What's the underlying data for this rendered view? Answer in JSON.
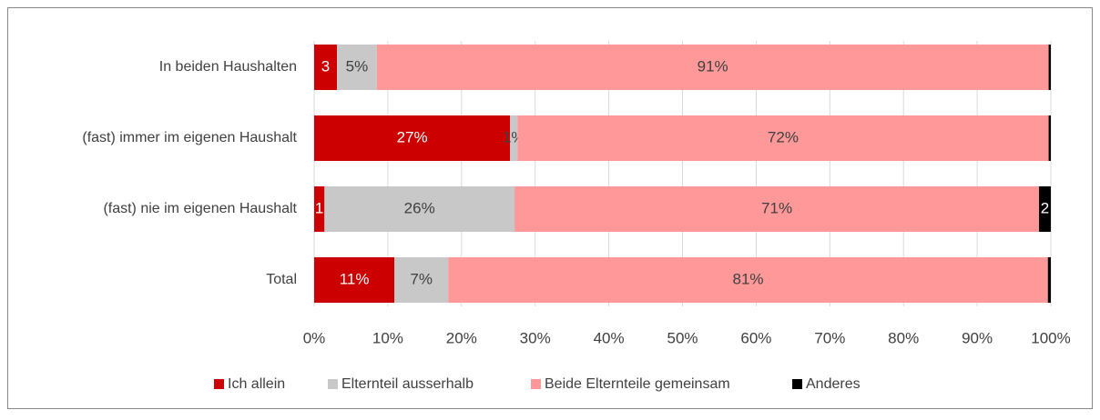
{
  "chart_data": {
    "type": "bar",
    "orientation": "horizontal",
    "stacked": true,
    "categories": [
      "In beiden Haushalten",
      "(fast) immer im eigenen Haushalt",
      "(fast) nie im eigenen Haushalt",
      "Total"
    ],
    "series": [
      {
        "name": "Ich allein",
        "color": "#cc0000",
        "values": [
          3.1,
          26.6,
          1.4,
          10.9
        ],
        "value_labels": [
          "3",
          "27%",
          "1",
          "11%"
        ]
      },
      {
        "name": "Elternteil ausserhalb",
        "color": "#c8c8c8",
        "values": [
          5.4,
          1.0,
          25.8,
          7.3
        ],
        "value_labels": [
          "5%",
          "1%",
          "26%",
          "7%"
        ]
      },
      {
        "name": "Beide Elternteile gemeinsam",
        "color": "#ff9999",
        "values": [
          91.2,
          72.1,
          71.2,
          81.4
        ],
        "value_labels": [
          "91%",
          "72%",
          "71%",
          "81%"
        ]
      },
      {
        "name": "Anderes",
        "color": "#000000",
        "values": [
          0.3,
          0.3,
          1.6,
          0.4
        ],
        "value_labels": [
          null,
          null,
          "2",
          null
        ]
      }
    ],
    "xlim": [
      0,
      100
    ],
    "xticks": [
      {
        "value": 0,
        "label": "0%"
      },
      {
        "value": 10,
        "label": "10%"
      },
      {
        "value": 20,
        "label": "20%"
      },
      {
        "value": 30,
        "label": "30%"
      },
      {
        "value": 40,
        "label": "40%"
      },
      {
        "value": 50,
        "label": "50%"
      },
      {
        "value": 60,
        "label": "60%"
      },
      {
        "value": 70,
        "label": "70%"
      },
      {
        "value": 80,
        "label": "80%"
      },
      {
        "value": 90,
        "label": "90%"
      },
      {
        "value": 100,
        "label": "100%"
      }
    ],
    "grid": true,
    "legend": "bottom"
  }
}
